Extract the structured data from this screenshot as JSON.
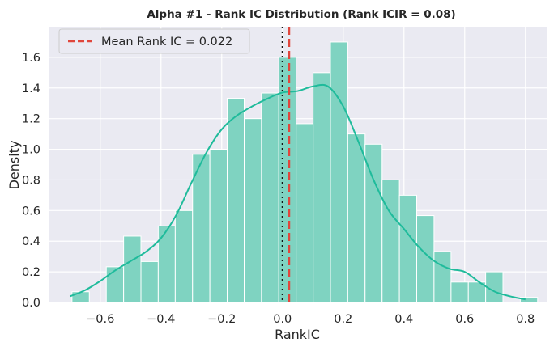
{
  "chart_data": {
    "type": "bar",
    "title": "Alpha #1 - Rank IC Distribution (Rank ICIR = 0.08)",
    "xlabel": "RankIC",
    "ylabel": "Density",
    "xlim": [
      -0.77,
      0.87
    ],
    "ylim": [
      0,
      1.8
    ],
    "xticks": [
      -0.6,
      -0.4,
      -0.2,
      0.0,
      0.2,
      0.4,
      0.6,
      0.8
    ],
    "xtick_labels": [
      "−0.6",
      "−0.4",
      "−0.2",
      "0.0",
      "0.2",
      "0.4",
      "0.6",
      "0.8"
    ],
    "yticks": [
      0.0,
      0.2,
      0.4,
      0.6,
      0.8,
      1.0,
      1.2,
      1.4,
      1.6
    ],
    "ytick_labels": [
      "0.0",
      "0.2",
      "0.4",
      "0.6",
      "0.8",
      "1.0",
      "1.2",
      "1.4",
      "1.6"
    ],
    "grid": true,
    "legend_position": "top-left",
    "bar_color": "#7fd3c1",
    "kde_color": "#1fbb9b",
    "mean_color": "#e0463c",
    "zero_line_color": "#111111",
    "background_color": "#eaeaf2",
    "bins": [
      {
        "left": -0.693,
        "right": -0.636,
        "density": 0.07
      },
      {
        "left": -0.636,
        "right": -0.58,
        "density": 0.0
      },
      {
        "left": -0.58,
        "right": -0.523,
        "density": 0.233
      },
      {
        "left": -0.523,
        "right": -0.466,
        "density": 0.433
      },
      {
        "left": -0.466,
        "right": -0.409,
        "density": 0.267
      },
      {
        "left": -0.409,
        "right": -0.353,
        "density": 0.5
      },
      {
        "left": -0.353,
        "right": -0.296,
        "density": 0.6
      },
      {
        "left": -0.296,
        "right": -0.239,
        "density": 0.967
      },
      {
        "left": -0.239,
        "right": -0.182,
        "density": 1.0
      },
      {
        "left": -0.182,
        "right": -0.126,
        "density": 1.333
      },
      {
        "left": -0.126,
        "right": -0.069,
        "density": 1.2
      },
      {
        "left": -0.069,
        "right": -0.012,
        "density": 1.367
      },
      {
        "left": -0.012,
        "right": 0.045,
        "density": 1.6
      },
      {
        "left": 0.045,
        "right": 0.101,
        "density": 1.167
      },
      {
        "left": 0.101,
        "right": 0.158,
        "density": 1.5
      },
      {
        "left": 0.158,
        "right": 0.215,
        "density": 1.7
      },
      {
        "left": 0.215,
        "right": 0.272,
        "density": 1.1
      },
      {
        "left": 0.272,
        "right": 0.328,
        "density": 1.033
      },
      {
        "left": 0.328,
        "right": 0.385,
        "density": 0.8
      },
      {
        "left": 0.385,
        "right": 0.442,
        "density": 0.7
      },
      {
        "left": 0.442,
        "right": 0.499,
        "density": 0.567
      },
      {
        "left": 0.499,
        "right": 0.555,
        "density": 0.333
      },
      {
        "left": 0.555,
        "right": 0.612,
        "density": 0.133
      },
      {
        "left": 0.612,
        "right": 0.669,
        "density": 0.133
      },
      {
        "left": 0.669,
        "right": 0.726,
        "density": 0.2
      },
      {
        "left": 0.726,
        "right": 0.783,
        "density": 0.0
      },
      {
        "left": 0.783,
        "right": 0.84,
        "density": 0.033
      }
    ],
    "kde": {
      "x": [
        -0.7,
        -0.65,
        -0.6,
        -0.55,
        -0.5,
        -0.45,
        -0.4,
        -0.35,
        -0.3,
        -0.25,
        -0.2,
        -0.15,
        -0.1,
        -0.05,
        0.0,
        0.05,
        0.1,
        0.15,
        0.2,
        0.25,
        0.3,
        0.35,
        0.4,
        0.45,
        0.5,
        0.55,
        0.6,
        0.65,
        0.7,
        0.75,
        0.8
      ],
      "y": [
        0.04,
        0.08,
        0.14,
        0.21,
        0.27,
        0.33,
        0.42,
        0.57,
        0.78,
        0.98,
        1.13,
        1.22,
        1.28,
        1.33,
        1.37,
        1.38,
        1.41,
        1.41,
        1.28,
        1.05,
        0.8,
        0.6,
        0.48,
        0.36,
        0.27,
        0.22,
        0.2,
        0.13,
        0.07,
        0.04,
        0.02
      ]
    },
    "mean": {
      "value": 0.022,
      "label": "Mean Rank IC = 0.022"
    },
    "zero_line": {
      "value": 0.0
    }
  }
}
